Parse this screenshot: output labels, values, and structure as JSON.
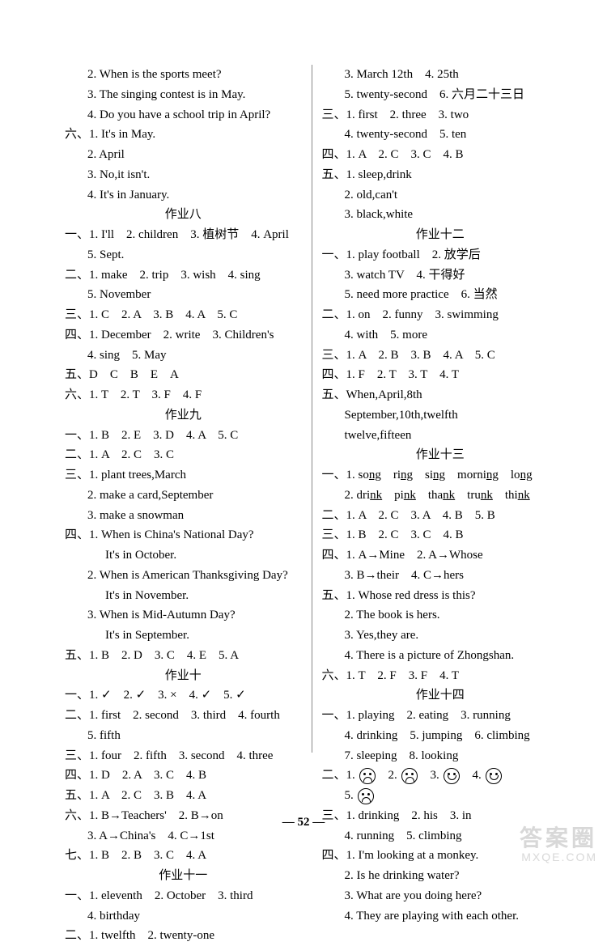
{
  "pageNumber": "52",
  "watermark": {
    "top": "答案圈",
    "bottom": "MXQE.COM"
  },
  "left": [
    {
      "cls": "line indent1",
      "text": "2. When is the sports meet?"
    },
    {
      "cls": "line indent1",
      "text": "3. The singing contest is in May."
    },
    {
      "cls": "line indent1",
      "text": "4. Do you have a school trip in April?"
    },
    {
      "cls": "line",
      "html": "<span class='cjk'>六、</span>1. It's in May."
    },
    {
      "cls": "line indent1",
      "text": "2. April"
    },
    {
      "cls": "line indent1",
      "text": "3. No,it isn't."
    },
    {
      "cls": "line indent1",
      "text": "4. It's in January."
    },
    {
      "cls": "section-title",
      "text": "作业八"
    },
    {
      "cls": "line",
      "html": "<span class='cjk'>一、</span>1. I'll　2. children　3. <span class='cjk'>植树节</span>　4. April"
    },
    {
      "cls": "line indent1",
      "text": "5. Sept."
    },
    {
      "cls": "line",
      "html": "<span class='cjk'>二、</span>1. make　2. trip　3. wish　4. sing"
    },
    {
      "cls": "line indent1",
      "text": "5. November"
    },
    {
      "cls": "line",
      "html": "<span class='cjk'>三、</span>1. C　2. A　3. B　4. A　5. C"
    },
    {
      "cls": "line",
      "html": "<span class='cjk'>四、</span>1. December　2. write　3. Children's"
    },
    {
      "cls": "line indent1",
      "text": "4. sing　5. May"
    },
    {
      "cls": "line",
      "html": "<span class='cjk'>五、</span>D　C　B　E　A"
    },
    {
      "cls": "line",
      "html": "<span class='cjk'>六、</span>1. T　2. T　3. F　4. F"
    },
    {
      "cls": "section-title",
      "text": "作业九"
    },
    {
      "cls": "line",
      "html": "<span class='cjk'>一、</span>1. B　2. E　3. D　4. A　5. C"
    },
    {
      "cls": "line",
      "html": "<span class='cjk'>二、</span>1. A　2. C　3. C"
    },
    {
      "cls": "line",
      "html": "<span class='cjk'>三、</span>1. plant trees,March"
    },
    {
      "cls": "line indent1",
      "text": "2. make a card,September"
    },
    {
      "cls": "line indent1",
      "text": "3. make a snowman"
    },
    {
      "cls": "line",
      "html": "<span class='cjk'>四、</span>1. When is China's National Day?"
    },
    {
      "cls": "line indent2",
      "text": "It's in October."
    },
    {
      "cls": "line indent1",
      "text": "2. When is American Thanksgiving Day?"
    },
    {
      "cls": "line indent2",
      "text": "It's in November."
    },
    {
      "cls": "line indent1",
      "text": "3. When is Mid-Autumn Day?"
    },
    {
      "cls": "line indent2",
      "text": "It's in September."
    },
    {
      "cls": "line",
      "html": "<span class='cjk'>五、</span>1. B　2. D　3. C　4. E　5. A"
    },
    {
      "cls": "section-title",
      "text": "作业十"
    },
    {
      "cls": "line",
      "html": "<span class='cjk'>一、</span>1. ✓　2. ✓　3. ×　4. ✓　5. ✓"
    },
    {
      "cls": "line",
      "html": "<span class='cjk'>二、</span>1. first　2. second　3. third　4. fourth"
    },
    {
      "cls": "line indent1",
      "text": "5. fifth"
    },
    {
      "cls": "line",
      "html": "<span class='cjk'>三、</span>1. four　2. fifth　3. second　4. three"
    },
    {
      "cls": "line",
      "html": "<span class='cjk'>四、</span>1. D　2. A　3. C　4. B"
    },
    {
      "cls": "line",
      "html": "<span class='cjk'>五、</span>1. A　2. C　3. B　4. A"
    },
    {
      "cls": "line",
      "html": "<span class='cjk'>六、</span>1. B→Teachers'　2. B→on"
    },
    {
      "cls": "line indent1",
      "text": "3. A→China's　4. C→1st"
    },
    {
      "cls": "line",
      "html": "<span class='cjk'>七、</span>1. B　2. B　3. C　4. A"
    },
    {
      "cls": "section-title",
      "text": "作业十一"
    },
    {
      "cls": "line",
      "html": "<span class='cjk'>一、</span>1. eleventh　2. October　3. third"
    },
    {
      "cls": "line indent1",
      "text": "4. birthday"
    },
    {
      "cls": "line",
      "html": "<span class='cjk'>二、</span>1. twelfth　2. twenty-one"
    }
  ],
  "right": [
    {
      "cls": "line indent1",
      "text": "3. March 12th　4. 25th"
    },
    {
      "cls": "line indent1",
      "html": "5. twenty-second　6. <span class='cjk'>六月二十三日</span>"
    },
    {
      "cls": "line",
      "html": "<span class='cjk'>三、</span>1. first　2. three　3. two"
    },
    {
      "cls": "line indent1",
      "text": "4. twenty-second　5. ten"
    },
    {
      "cls": "line",
      "html": "<span class='cjk'>四、</span>1. A　2. C　3. C　4. B"
    },
    {
      "cls": "line",
      "html": "<span class='cjk'>五、</span>1. sleep,drink"
    },
    {
      "cls": "line indent1",
      "text": "2. old,can't"
    },
    {
      "cls": "line indent1",
      "text": "3. black,white"
    },
    {
      "cls": "section-title",
      "text": "作业十二"
    },
    {
      "cls": "line",
      "html": "<span class='cjk'>一、</span>1. play football　2. <span class='cjk'>放学后</span>"
    },
    {
      "cls": "line indent1",
      "html": "3. watch TV　4. <span class='cjk'>干得好</span>"
    },
    {
      "cls": "line indent1",
      "html": "5. need more practice　6. <span class='cjk'>当然</span>"
    },
    {
      "cls": "line",
      "html": "<span class='cjk'>二、</span>1. on　2. funny　3. swimming"
    },
    {
      "cls": "line indent1",
      "text": "4. with　5. more"
    },
    {
      "cls": "line",
      "html": "<span class='cjk'>三、</span>1. A　2. B　3. B　4. A　5. C"
    },
    {
      "cls": "line",
      "html": "<span class='cjk'>四、</span>1. F　2. T　3. T　4. T"
    },
    {
      "cls": "line",
      "html": "<span class='cjk'>五、</span>When,April,8th"
    },
    {
      "cls": "line indent1",
      "text": "September,10th,twelfth"
    },
    {
      "cls": "line indent1",
      "text": "twelve,fifteen"
    },
    {
      "cls": "section-title",
      "text": "作业十三"
    },
    {
      "cls": "line",
      "html": "<span class='cjk'>一、</span>1. so<span class='u'>ng</span>　ri<span class='u'>ng</span>　si<span class='u'>ng</span>　morni<span class='u'>ng</span>　lo<span class='u'>ng</span>"
    },
    {
      "cls": "line indent1",
      "html": "2. dri<span class='u'>nk</span>　pi<span class='u'>nk</span>　tha<span class='u'>nk</span>　tru<span class='u'>nk</span>　thi<span class='u'>nk</span>"
    },
    {
      "cls": "line",
      "html": "<span class='cjk'>二、</span>1. A　2. C　3. A　4. B　5. B"
    },
    {
      "cls": "line",
      "html": "<span class='cjk'>三、</span>1. B　2. C　3. C　4. B"
    },
    {
      "cls": "line",
      "html": "<span class='cjk'>四、</span>1. A→Mine　2. A→Whose"
    },
    {
      "cls": "line indent1",
      "text": "3. B→their　4. C→hers"
    },
    {
      "cls": "line",
      "html": "<span class='cjk'>五、</span>1. Whose red dress is this?"
    },
    {
      "cls": "line indent1",
      "text": "2. The book is hers."
    },
    {
      "cls": "line indent1",
      "text": "3. Yes,they are."
    },
    {
      "cls": "line indent1",
      "text": "4. There is a picture of Zhongshan."
    },
    {
      "cls": "line",
      "html": "<span class='cjk'>六、</span>1. T　2. F　3. F　4. T"
    },
    {
      "cls": "section-title",
      "text": "作业十四"
    },
    {
      "cls": "line",
      "html": "<span class='cjk'>一、</span>1. playing　2. eating　3. running"
    },
    {
      "cls": "line indent1",
      "text": "4. drinking　5. jumping　6. climbing"
    },
    {
      "cls": "line indent1",
      "text": "7. sleeping　8. looking"
    },
    {
      "cls": "line",
      "html": "<span class='cjk'>二、</span>1. <span class='face sad'></span>　2. <span class='face sad'></span>　3. <span class='face happy'></span>　4. <span class='face happy'></span>"
    },
    {
      "cls": "line indent1",
      "html": "5. <span class='face sad'></span>"
    },
    {
      "cls": "line",
      "html": "<span class='cjk'>三、</span>1. drinking　2. his　3. in"
    },
    {
      "cls": "line indent1",
      "text": "4. running　5. climbing"
    },
    {
      "cls": "line",
      "html": "<span class='cjk'>四、</span>1. I'm looking at a monkey."
    },
    {
      "cls": "line indent1",
      "text": "2. Is he drinking water?"
    },
    {
      "cls": "line indent1",
      "text": "3. What are you doing here?"
    },
    {
      "cls": "line indent1",
      "text": "4. They are playing with each other."
    }
  ]
}
